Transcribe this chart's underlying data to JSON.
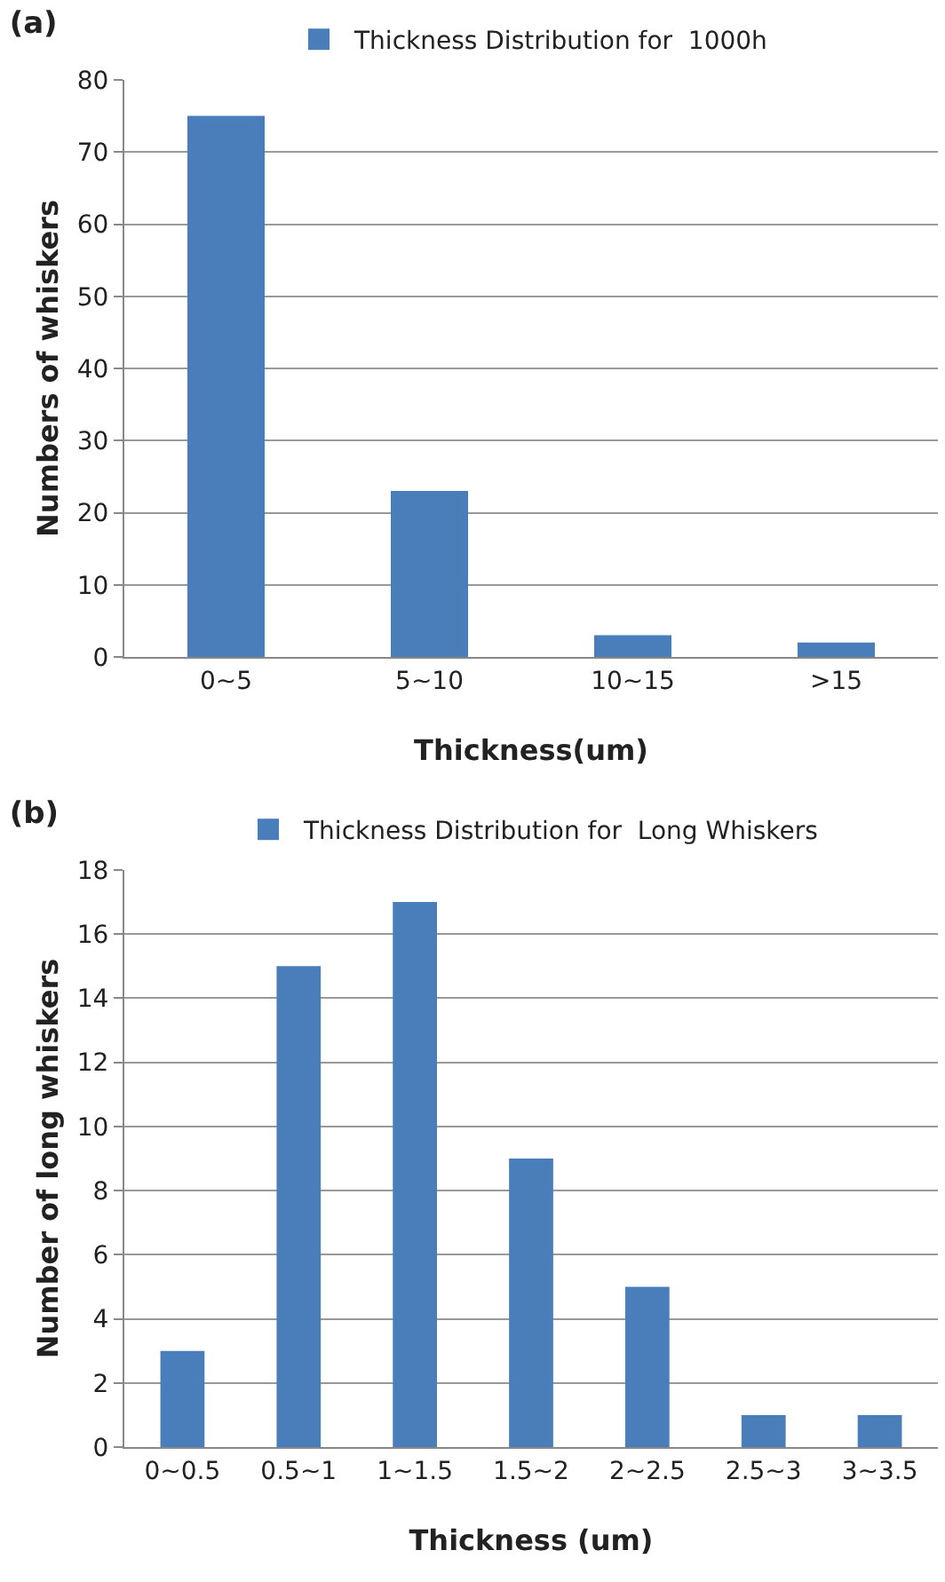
{
  "chart_data": [
    {
      "type": "bar",
      "title": "(a)",
      "xlabel": "Thickness(um)",
      "ylabel": "Numbers of whiskers",
      "categories": [
        "0~5",
        "5~10",
        "10~15",
        ">15"
      ],
      "series": [
        {
          "name": "Thickness Distribution for  1000h",
          "color": "#4a7ebb",
          "values": [
            75,
            23,
            3,
            2
          ]
        }
      ],
      "ylim": [
        0,
        80
      ],
      "yticks": [
        0,
        10,
        20,
        30,
        40,
        50,
        60,
        70,
        80
      ],
      "grid": "y",
      "legend": "top"
    },
    {
      "type": "bar",
      "title": "(b)",
      "xlabel": "Thickness (um)",
      "ylabel": "Number of long whiskers",
      "categories": [
        "0~0.5",
        "0.5~1",
        "1~1.5",
        "1.5~2",
        "2~2.5",
        "2.5~3",
        "3~3.5"
      ],
      "series": [
        {
          "name": "Thickness Distribution for  Long Whiskers",
          "color": "#4a7ebb",
          "values": [
            3,
            15,
            17,
            9,
            5,
            1,
            1
          ]
        }
      ],
      "ylim": [
        0,
        18
      ],
      "yticks": [
        0,
        2,
        4,
        6,
        8,
        10,
        12,
        14,
        16,
        18
      ],
      "grid": "y",
      "legend": "top"
    }
  ]
}
